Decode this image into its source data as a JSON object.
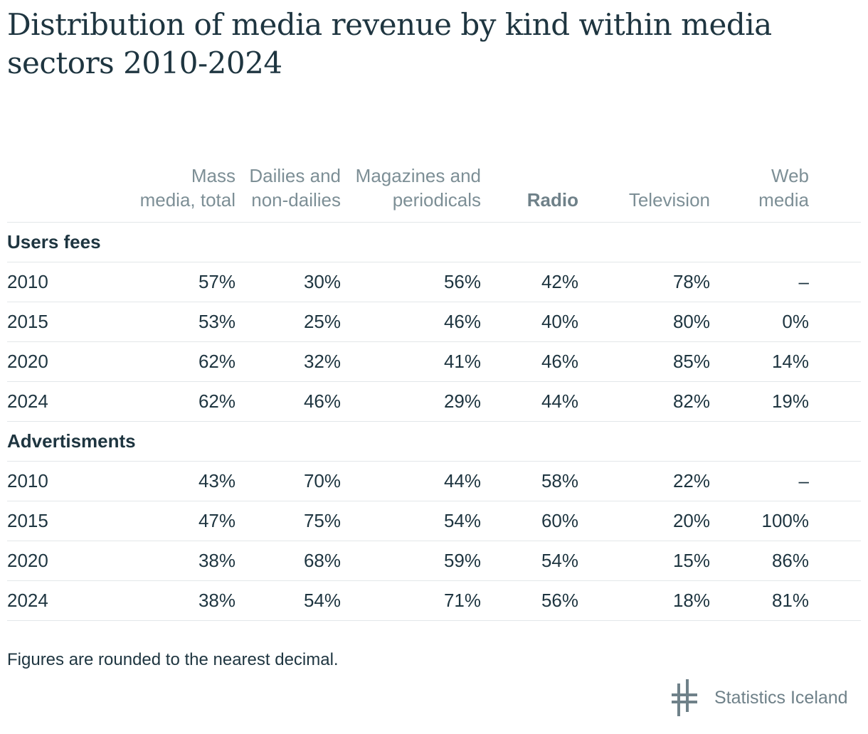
{
  "chart_data": {
    "type": "table",
    "title": "Distribution of media revenue by kind within media sectors 2010-2024",
    "columns": [
      "Mass media, total",
      "Dailies and non-dailies",
      "Magazines and periodicals",
      "Radio",
      "Television",
      "Web media"
    ],
    "groups": [
      {
        "name": "Users fees",
        "rows": [
          {
            "year": "2010",
            "values": [
              "57%",
              "30%",
              "56%",
              "42%",
              "78%",
              "–"
            ]
          },
          {
            "year": "2015",
            "values": [
              "53%",
              "25%",
              "46%",
              "40%",
              "80%",
              "0%"
            ]
          },
          {
            "year": "2020",
            "values": [
              "62%",
              "32%",
              "41%",
              "46%",
              "85%",
              "14%"
            ]
          },
          {
            "year": "2024",
            "values": [
              "62%",
              "46%",
              "29%",
              "44%",
              "82%",
              "19%"
            ]
          }
        ]
      },
      {
        "name": "Advertisments",
        "rows": [
          {
            "year": "2010",
            "values": [
              "43%",
              "70%",
              "44%",
              "58%",
              "22%",
              "–"
            ]
          },
          {
            "year": "2015",
            "values": [
              "47%",
              "75%",
              "54%",
              "60%",
              "20%",
              "100%"
            ]
          },
          {
            "year": "2020",
            "values": [
              "38%",
              "68%",
              "59%",
              "54%",
              "15%",
              "86%"
            ]
          },
          {
            "year": "2024",
            "values": [
              "38%",
              "54%",
              "71%",
              "56%",
              "18%",
              "81%"
            ]
          }
        ]
      }
    ],
    "bold_column": "Radio"
  },
  "footnote": "Figures are rounded to the nearest decimal.",
  "logo": {
    "text": "Statistics Iceland"
  },
  "colors": {
    "text": "#1e3540",
    "header": "#7d8f96",
    "rule": "#e3e7e9"
  }
}
